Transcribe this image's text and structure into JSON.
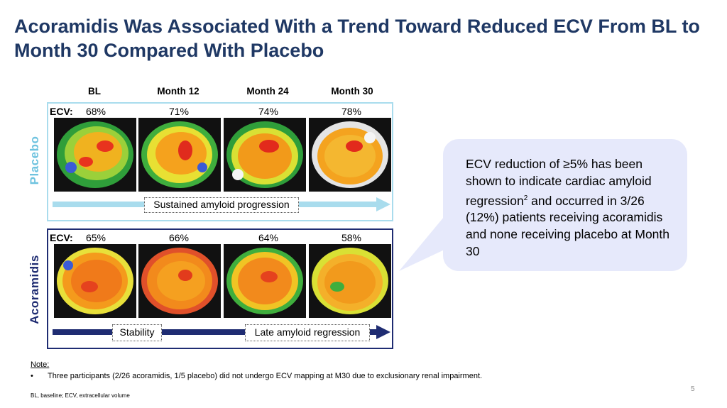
{
  "title": "Acoramidis Was Associated With a Trend Toward Reduced ECV From BL to Month 30 Compared With Placebo",
  "columns": [
    "BL",
    "Month 12",
    "Month 24",
    "Month 30"
  ],
  "ecv_label": "ECV:",
  "placebo": {
    "row_label": "Placebo",
    "ecv_values": [
      "68%",
      "71%",
      "74%",
      "78%"
    ],
    "arrow_label": "Sustained amyloid progression",
    "color": "#a9dced"
  },
  "acoramidis": {
    "row_label": "Acoramidis",
    "ecv_values": [
      "65%",
      "66%",
      "64%",
      "58%"
    ],
    "stability_label": "Stability",
    "regression_label": "Late amyloid regression",
    "color": "#1f2c72"
  },
  "callout": {
    "text_1": "ECV reduction of ≥5% has been shown to indicate cardiac amyloid regression",
    "superscript": "2",
    "text_2": " and occurred in 3/26 (12%) patients receiving acoramidis and none receiving placebo at Month 30"
  },
  "note": {
    "title": "Note:",
    "bullet": "•",
    "item": "Three participants (2/26 acoramidis, 1/5 placebo) did not undergo ECV mapping at M30 due to exclusionary renal impairment."
  },
  "abbreviations": "BL, baseline; ECV, extracellular volume",
  "page_number": "5",
  "colors": {
    "title": "#1f3864",
    "callout_bg": "#e6e9fb"
  }
}
